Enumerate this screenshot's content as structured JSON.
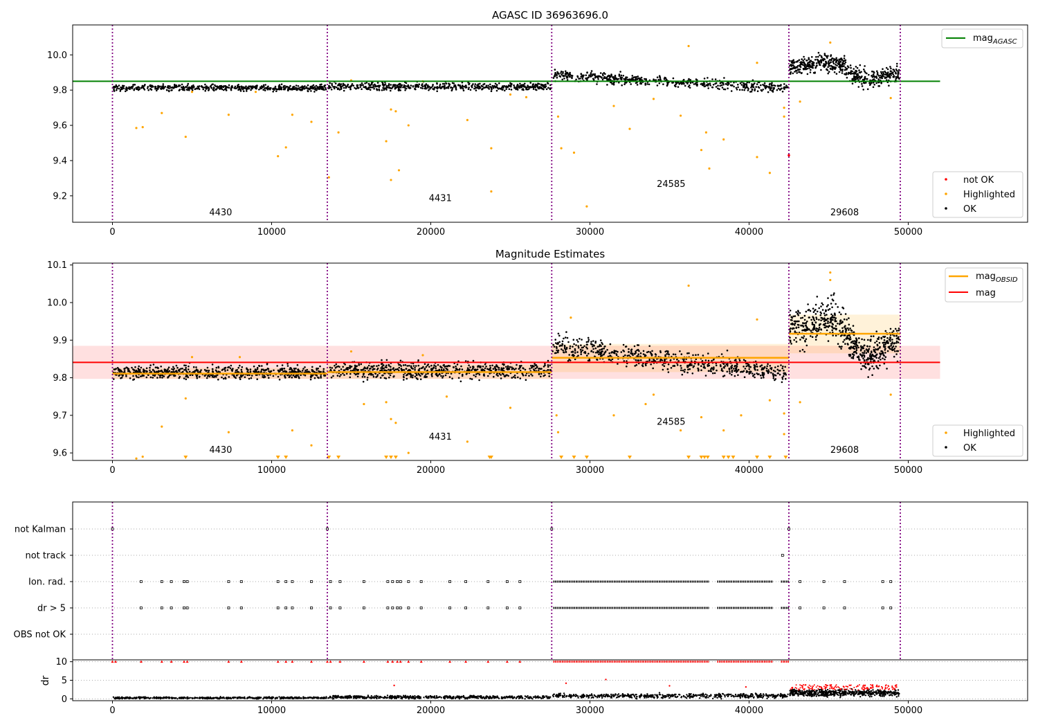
{
  "chart_data": [
    {
      "type": "scatter",
      "title": "AGASC ID 36963696.0",
      "xlabel": "",
      "ylabel": "",
      "xlim": [
        -2500,
        57500
      ],
      "ylim": [
        9.05,
        10.17
      ],
      "xticks": [
        0,
        10000,
        20000,
        30000,
        40000,
        50000
      ],
      "xtick_labels": [
        "0",
        "10000",
        "20000",
        "30000",
        "40000",
        "50000"
      ],
      "yticks": [
        9.2,
        9.4,
        9.6,
        9.8,
        10.0
      ],
      "ytick_labels": [
        "9.2",
        "9.4",
        "9.6",
        "9.8",
        "10.0"
      ],
      "grid": false,
      "boundaries": [
        0,
        13500,
        27600,
        42500,
        49500
      ],
      "obsid_labels": [
        {
          "text": "4430",
          "x": 6800,
          "y": 9.09
        },
        {
          "text": "4431",
          "x": 20600,
          "y": 9.17
        },
        {
          "text": "24585",
          "x": 35100,
          "y": 9.25
        },
        {
          "text": "29608",
          "x": 46000,
          "y": 9.09
        }
      ],
      "segments": [
        {
          "x0": 0,
          "x1": 13500,
          "center": 9.813,
          "spread": 0.017
        },
        {
          "x0": 13500,
          "x1": 27600,
          "center": 9.82,
          "spread": 0.022
        },
        {
          "x0": 27600,
          "x1": 42500,
          "start": 9.885,
          "end": 9.81,
          "spread": 0.028
        },
        {
          "x0": 42500,
          "x1": 49500,
          "start": 9.97,
          "end": 9.86,
          "spread": 0.05
        }
      ],
      "lines": [
        {
          "name": "mag_AGASC",
          "legend_main": "mag",
          "legend_sub": "AGASC",
          "color": "#008000",
          "y": 9.85,
          "x0": -2500,
          "x1": 52000
        }
      ],
      "series": [
        {
          "name": "not OK",
          "color": "#ff0000",
          "points": [
            [
              42500,
              9.43
            ]
          ]
        },
        {
          "name": "Highlighted",
          "color": "#ffa500",
          "points": [
            [
              1500,
              9.585
            ],
            [
              1900,
              9.59
            ],
            [
              3100,
              9.67
            ],
            [
              4600,
              9.535
            ],
            [
              7300,
              9.66
            ],
            [
              10400,
              9.425
            ],
            [
              10900,
              9.475
            ],
            [
              11300,
              9.66
            ],
            [
              12500,
              9.62
            ],
            [
              13600,
              9.305
            ],
            [
              14200,
              9.56
            ],
            [
              17200,
              9.51
            ],
            [
              17500,
              9.29
            ],
            [
              17500,
              9.69
            ],
            [
              17800,
              9.68
            ],
            [
              18000,
              9.345
            ],
            [
              18600,
              9.6
            ],
            [
              22300,
              9.63
            ],
            [
              23800,
              9.47
            ],
            [
              23800,
              9.225
            ],
            [
              29800,
              9.14
            ],
            [
              28200,
              9.47
            ],
            [
              29000,
              9.445
            ],
            [
              28000,
              9.65
            ],
            [
              32500,
              9.58
            ],
            [
              34000,
              9.75
            ],
            [
              35700,
              9.655
            ],
            [
              36200,
              10.05
            ],
            [
              37000,
              9.46
            ],
            [
              37300,
              9.56
            ],
            [
              37500,
              9.355
            ],
            [
              38400,
              9.52
            ],
            [
              40500,
              9.42
            ],
            [
              40500,
              9.955
            ],
            [
              41300,
              9.33
            ],
            [
              42200,
              9.65
            ],
            [
              42200,
              9.7
            ],
            [
              43200,
              9.735
            ],
            [
              45100,
              10.07
            ],
            [
              48900,
              9.755
            ],
            [
              5000,
              9.79
            ],
            [
              9000,
              9.79
            ],
            [
              15000,
              9.855
            ],
            [
              19500,
              9.85
            ],
            [
              25000,
              9.775
            ],
            [
              26000,
              9.76
            ],
            [
              31500,
              9.71
            ]
          ]
        },
        {
          "name": "OK",
          "color": "#000000",
          "points": []
        }
      ],
      "legend_top": {
        "location": "upper right",
        "entries": [
          "mag_AGASC"
        ]
      },
      "legend_bottom": {
        "location": "lower right",
        "entries": [
          "not OK",
          "Highlighted",
          "OK"
        ]
      }
    },
    {
      "type": "scatter",
      "title": "Magnitude Estimates",
      "xlabel": "",
      "ylabel": "",
      "xlim": [
        -2500,
        57500
      ],
      "ylim": [
        9.58,
        10.105
      ],
      "xticks": [
        0,
        10000,
        20000,
        30000,
        40000,
        50000
      ],
      "xtick_labels": [
        "0",
        "10000",
        "20000",
        "30000",
        "40000",
        "50000"
      ],
      "yticks": [
        9.6,
        9.7,
        9.8,
        9.9,
        10.0,
        10.1
      ],
      "ytick_labels": [
        "9.6",
        "9.7",
        "9.8",
        "9.9",
        "10.0",
        "10.1"
      ],
      "grid": false,
      "boundaries": [
        0,
        13500,
        27600,
        42500,
        49500
      ],
      "obsid_labels": [
        {
          "text": "4430",
          "x": 6800,
          "y": 9.6
        },
        {
          "text": "4431",
          "x": 20600,
          "y": 9.635
        },
        {
          "text": "24585",
          "x": 35100,
          "y": 9.675
        },
        {
          "text": "29608",
          "x": 46000,
          "y": 9.6
        }
      ],
      "segments": [
        {
          "x0": 0,
          "x1": 13500,
          "center": 9.814,
          "spread": 0.017
        },
        {
          "x0": 13500,
          "x1": 27600,
          "center": 9.82,
          "spread": 0.022
        },
        {
          "x0": 27600,
          "x1": 42500,
          "start": 9.885,
          "end": 9.81,
          "spread": 0.028
        },
        {
          "x0": 42500,
          "x1": 49500,
          "start": 9.97,
          "end": 9.86,
          "spread": 0.05
        }
      ],
      "mag": {
        "y": 9.841,
        "band": [
          9.797,
          9.885
        ],
        "x0": -2500,
        "x1": 52000,
        "color": "#ff0000"
      },
      "mag_obsid": [
        {
          "x0": 0,
          "x1": 13500,
          "y": 9.811,
          "band": [
            9.797,
            9.826
          ]
        },
        {
          "x0": 13500,
          "x1": 27600,
          "y": 9.815,
          "band": [
            9.797,
            9.835
          ]
        },
        {
          "x0": 27600,
          "x1": 42500,
          "y": 9.853,
          "band": [
            9.815,
            9.89
          ]
        },
        {
          "x0": 42500,
          "x1": 49500,
          "y": 9.917,
          "band": [
            9.865,
            9.968
          ]
        }
      ],
      "limit_markers": [
        4600,
        10400,
        10900,
        13600,
        14200,
        17200,
        17500,
        17800,
        23700,
        23800,
        28200,
        29000,
        29800,
        32500,
        36200,
        37000,
        37200,
        37400,
        38400,
        38700,
        39000,
        40500,
        41300,
        42300
      ],
      "series": [
        {
          "name": "mag_OBSID",
          "legend_main": "mag",
          "legend_sub": "OBSID",
          "color": "#ffa500"
        },
        {
          "name": "mag",
          "color": "#ff0000"
        },
        {
          "name": "Highlighted",
          "color": "#ffa500",
          "points": [
            [
              1900,
              9.59
            ],
            [
              1500,
              9.585
            ],
            [
              3100,
              9.67
            ],
            [
              4600,
              9.745
            ],
            [
              7300,
              9.655
            ],
            [
              11300,
              9.66
            ],
            [
              12500,
              9.62
            ],
            [
              15800,
              9.73
            ],
            [
              17200,
              9.735
            ],
            [
              17500,
              9.69
            ],
            [
              17800,
              9.68
            ],
            [
              18600,
              9.6
            ],
            [
              22300,
              9.63
            ],
            [
              25000,
              9.72
            ],
            [
              21000,
              9.75
            ],
            [
              28000,
              9.655
            ],
            [
              27900,
              9.7
            ],
            [
              31500,
              9.7
            ],
            [
              33500,
              9.73
            ],
            [
              34000,
              9.755
            ],
            [
              35700,
              9.66
            ],
            [
              36200,
              10.045
            ],
            [
              37000,
              9.695
            ],
            [
              38400,
              9.66
            ],
            [
              39500,
              9.7
            ],
            [
              40500,
              9.955
            ],
            [
              41300,
              9.74
            ],
            [
              42200,
              9.65
            ],
            [
              42200,
              9.705
            ],
            [
              43200,
              9.735
            ],
            [
              45100,
              10.08
            ],
            [
              45100,
              10.06
            ],
            [
              48900,
              9.755
            ],
            [
              28800,
              9.96
            ],
            [
              5000,
              9.855
            ],
            [
              8000,
              9.855
            ],
            [
              15000,
              9.87
            ],
            [
              19500,
              9.86
            ]
          ]
        },
        {
          "name": "OK",
          "color": "#000000",
          "points": []
        }
      ],
      "legend_top": {
        "location": "upper right",
        "entries": [
          "mag_OBSID",
          "mag"
        ]
      },
      "legend_bottom": {
        "location": "lower right",
        "entries": [
          "Highlighted",
          "OK"
        ]
      }
    },
    {
      "type": "scatter",
      "title": "",
      "xlabel": "",
      "ylabel": "",
      "xlim": [
        -2500,
        57500
      ],
      "categories": [
        "not Kalman",
        "not track",
        "Ion. rad.",
        "dr > 5",
        "OBS not OK"
      ],
      "grid": "horizontal dotted",
      "boundaries": [
        0,
        13500,
        27600,
        42500,
        49500
      ],
      "flags": {
        "not Kalman": {
          "x": [
            0,
            13500,
            27600,
            42500
          ],
          "runs": []
        },
        "not track": {
          "x": [
            42100
          ],
          "runs": []
        },
        "Ion. rad.": {
          "x": [
            1800,
            3100,
            3700,
            4500,
            4700,
            7300,
            8100,
            10400,
            10900,
            11300,
            12500,
            13700,
            14300,
            15800,
            17300,
            17600,
            17900,
            18100,
            18600,
            19400,
            21200,
            22200,
            23600,
            24800,
            25600
          ],
          "runs": [
            [
              27700,
              37500
            ],
            [
              38000,
              41500
            ],
            [
              42000,
              42500
            ]
          ],
          "x_after": [
            43200,
            44700,
            46000,
            48400,
            48900
          ]
        },
        "dr > 5": {
          "x": [
            1800,
            3100,
            3700,
            4500,
            4700,
            7300,
            8100,
            10400,
            10900,
            11300,
            12500,
            13700,
            14300,
            15800,
            17300,
            17600,
            17900,
            18100,
            18600,
            19400,
            21200,
            22200,
            23600,
            24800,
            25600
          ],
          "runs": [
            [
              27700,
              37500
            ],
            [
              38000,
              41500
            ],
            [
              42000,
              42500
            ]
          ],
          "x_after": [
            43200,
            44700,
            46000,
            48400,
            48900
          ]
        },
        "OBS not OK": {
          "x": [],
          "runs": []
        }
      }
    },
    {
      "type": "scatter",
      "title": "",
      "xlabel": "",
      "ylabel": "dr",
      "xlim": [
        -2500,
        57500
      ],
      "ylim": [
        -0.5,
        10.5
      ],
      "xticks": [
        0,
        10000,
        20000,
        30000,
        40000,
        50000
      ],
      "xtick_labels": [
        "0",
        "10000",
        "20000",
        "30000",
        "40000",
        "50000"
      ],
      "yticks": [
        0,
        5,
        10
      ],
      "ytick_labels": [
        "0",
        "5",
        "10"
      ],
      "grid": "horizontal dotted",
      "segments": [
        {
          "x0": 0,
          "x1": 13500,
          "center": 0.25,
          "spread": 0.25
        },
        {
          "x0": 13500,
          "x1": 27600,
          "center": 0.45,
          "spread": 0.4
        },
        {
          "x0": 27600,
          "x1": 42500,
          "center": 0.8,
          "spread": 0.6
        },
        {
          "x0": 42500,
          "x1": 49500,
          "center": 1.6,
          "spread": 0.9
        }
      ],
      "red_clipped_x": [
        0,
        200,
        1800,
        3100,
        3700,
        4500,
        4700,
        7300,
        8100,
        10400,
        10900,
        11300,
        12500,
        13500,
        13700,
        14300,
        15800,
        17300,
        17600,
        17900,
        18100,
        18600,
        19400,
        21200,
        22200,
        23600,
        24800,
        25600
      ],
      "red_clipped_runs": [
        [
          27700,
          37500
        ],
        [
          38000,
          41500
        ],
        [
          42000,
          42500
        ]
      ],
      "red_scatter": [
        [
          28500,
          4.2
        ],
        [
          31000,
          5.2
        ],
        [
          35000,
          3.5
        ],
        [
          39800,
          3.2
        ],
        [
          17700,
          3.6
        ]
      ]
    }
  ]
}
